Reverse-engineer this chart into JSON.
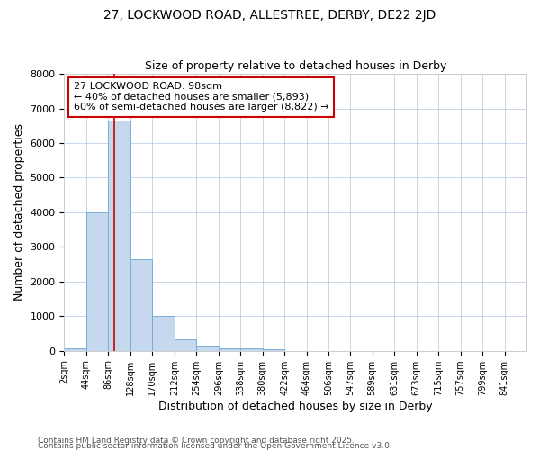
{
  "title1": "27, LOCKWOOD ROAD, ALLESTREE, DERBY, DE22 2JD",
  "title2": "Size of property relative to detached houses in Derby",
  "xlabel": "Distribution of detached houses by size in Derby",
  "ylabel": "Number of detached properties",
  "bin_labels": [
    "2sqm",
    "44sqm",
    "86sqm",
    "128sqm",
    "170sqm",
    "212sqm",
    "254sqm",
    "296sqm",
    "338sqm",
    "380sqm",
    "422sqm",
    "464sqm",
    "506sqm",
    "547sqm",
    "589sqm",
    "631sqm",
    "673sqm",
    "715sqm",
    "757sqm",
    "799sqm",
    "841sqm"
  ],
  "bin_edges": [
    2,
    44,
    86,
    128,
    170,
    212,
    254,
    296,
    338,
    380,
    422,
    464,
    506,
    547,
    589,
    631,
    673,
    715,
    757,
    799,
    841
  ],
  "bar_heights": [
    75,
    4000,
    6650,
    2650,
    1000,
    340,
    140,
    75,
    60,
    50,
    5,
    0,
    0,
    0,
    0,
    0,
    0,
    0,
    0,
    0
  ],
  "bar_color": "#c5d8ee",
  "bar_edge_color": "#7aadd4",
  "property_size": 98,
  "red_line_color": "#cc0000",
  "annotation_line1": "27 LOCKWOOD ROAD: 98sqm",
  "annotation_line2": "← 40% of detached houses are smaller (5,893)",
  "annotation_line3": "60% of semi-detached houses are larger (8,822) →",
  "annotation_box_color": "#ffffff",
  "annotation_edge_color": "#cc0000",
  "ylim": [
    0,
    8000
  ],
  "yticks": [
    0,
    1000,
    2000,
    3000,
    4000,
    5000,
    6000,
    7000,
    8000
  ],
  "grid_color": "#b0c8e0",
  "plot_bg_color": "#ffffff",
  "fig_bg_color": "#ffffff",
  "footnote1": "Contains HM Land Registry data © Crown copyright and database right 2025.",
  "footnote2": "Contains public sector information licensed under the Open Government Licence v3.0."
}
